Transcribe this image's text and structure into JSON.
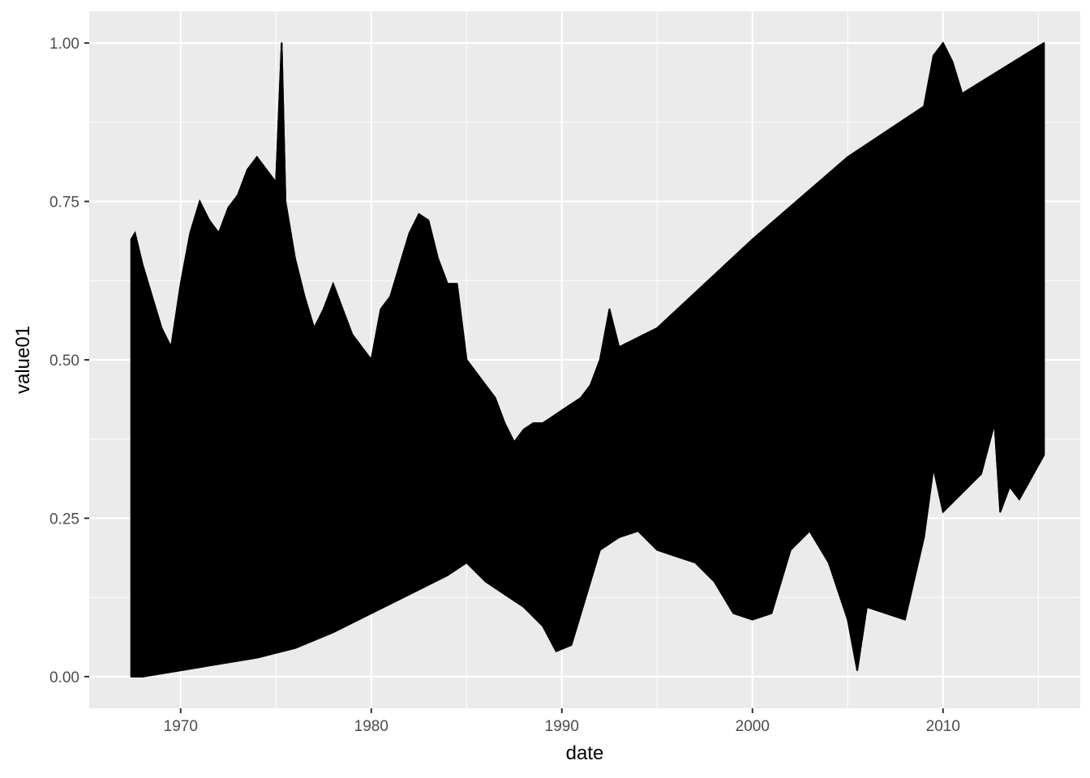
{
  "chart_data": {
    "type": "area",
    "title": "",
    "xlabel": "date",
    "ylabel": "value01",
    "xlim": [
      1965.2,
      2017.2
    ],
    "ylim": [
      -0.05,
      1.05
    ],
    "x_ticks": [
      1970,
      1980,
      1990,
      2000,
      2010
    ],
    "x_tick_labels": [
      "1970",
      "1980",
      "1990",
      "2000",
      "2010"
    ],
    "y_ticks": [
      0.0,
      0.25,
      0.5,
      0.75,
      1.0
    ],
    "y_tick_labels": [
      "0.00",
      "0.25",
      "0.50",
      "0.75",
      "1.00"
    ],
    "grid": true,
    "legend": "none",
    "colors": {
      "panel": "#ebebeb",
      "grid": "#ffffff",
      "line": "#000000",
      "tick": "#4d4d4d"
    },
    "series": [
      {
        "role": "upper-envelope",
        "x": [
          1967.4,
          1967.6,
          1968.0,
          1968.5,
          1969.0,
          1969.5,
          1970.0,
          1970.5,
          1971.0,
          1971.5,
          1972.0,
          1972.5,
          1973.0,
          1973.5,
          1974.0,
          1974.5,
          1975.0,
          1975.3,
          1975.5,
          1976.0,
          1976.5,
          1977.0,
          1977.5,
          1978.0,
          1978.5,
          1979.0,
          1979.5,
          1980.0,
          1980.5,
          1981.0,
          1981.5,
          1982.0,
          1982.5,
          1983.0,
          1983.5,
          1984.0,
          1984.5,
          1985.0,
          1985.5,
          1986.0,
          1986.5,
          1987.0,
          1987.5,
          1988.0,
          1988.5,
          1989.0,
          1989.5,
          1990.0,
          1990.5,
          1991.0,
          1991.5,
          1992.0,
          1992.5,
          1993.0,
          1995.0,
          2000.0,
          2005.0,
          2009.0,
          2009.5,
          2010.0,
          2010.5,
          2011.0,
          2015.3
        ],
        "values": [
          0.69,
          0.7,
          0.65,
          0.6,
          0.55,
          0.52,
          0.62,
          0.7,
          0.75,
          0.72,
          0.7,
          0.74,
          0.76,
          0.8,
          0.82,
          0.8,
          0.78,
          1.0,
          0.75,
          0.66,
          0.6,
          0.55,
          0.58,
          0.62,
          0.58,
          0.54,
          0.52,
          0.5,
          0.58,
          0.6,
          0.65,
          0.7,
          0.73,
          0.72,
          0.66,
          0.62,
          0.62,
          0.5,
          0.48,
          0.46,
          0.44,
          0.4,
          0.37,
          0.39,
          0.4,
          0.4,
          0.41,
          0.42,
          0.43,
          0.44,
          0.46,
          0.5,
          0.58,
          0.52,
          0.55,
          0.69,
          0.82,
          0.9,
          0.98,
          1.0,
          0.97,
          0.92,
          1.0
        ]
      },
      {
        "role": "lower-envelope",
        "x": [
          1967.4,
          1968.0,
          1969.0,
          1970.0,
          1972.0,
          1974.0,
          1976.0,
          1978.0,
          1980.0,
          1982.0,
          1984.0,
          1985.0,
          1986.0,
          1987.0,
          1988.0,
          1989.0,
          1989.7,
          1990.5,
          1991.0,
          1992.0,
          1993.0,
          1994.0,
          1995.0,
          1996.0,
          1997.0,
          1998.0,
          1999.0,
          2000.0,
          2001.0,
          2002.0,
          2003.0,
          2004.0,
          2005.0,
          2005.5,
          2006.0,
          2007.0,
          2008.0,
          2009.0,
          2009.5,
          2010.0,
          2011.0,
          2012.0,
          2012.7,
          2013.0,
          2013.5,
          2014.0,
          2015.3
        ],
        "values": [
          0.0,
          0.0,
          0.005,
          0.01,
          0.02,
          0.03,
          0.045,
          0.07,
          0.1,
          0.13,
          0.16,
          0.18,
          0.15,
          0.13,
          0.11,
          0.08,
          0.04,
          0.05,
          0.1,
          0.2,
          0.22,
          0.23,
          0.2,
          0.19,
          0.18,
          0.15,
          0.1,
          0.09,
          0.1,
          0.2,
          0.23,
          0.18,
          0.09,
          0.01,
          0.11,
          0.1,
          0.09,
          0.22,
          0.33,
          0.26,
          0.29,
          0.32,
          0.4,
          0.26,
          0.3,
          0.28,
          0.35
        ]
      }
    ]
  }
}
